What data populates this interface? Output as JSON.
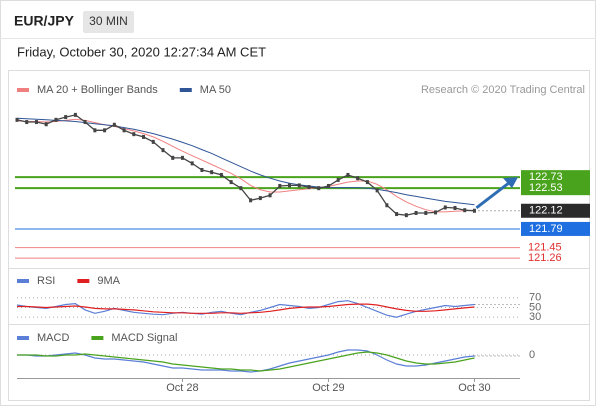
{
  "header": {
    "symbol": "EUR/JPY",
    "timeframe": "30 MIN",
    "date": "Friday, October 30, 2020 12:27:34 AM CET",
    "attribution": "Research © 2020 Trading Central"
  },
  "chart_data": [
    {
      "type": "line",
      "color": "#444444",
      "categories": [
        null,
        null,
        null,
        null,
        null,
        null,
        null,
        null,
        null,
        null,
        null,
        null,
        null,
        null,
        null,
        null,
        null,
        "Oct 28",
        null,
        null,
        null,
        null,
        null,
        null,
        null,
        null,
        null,
        null,
        null,
        null,
        null,
        null,
        "Oct 29",
        null,
        null,
        null,
        null,
        null,
        null,
        null,
        null,
        null,
        null,
        null,
        null,
        null,
        null,
        "Oct 30"
      ],
      "values": [
        123.77,
        123.73,
        123.73,
        123.69,
        123.77,
        123.82,
        123.86,
        123.73,
        123.58,
        123.58,
        123.68,
        123.58,
        123.51,
        123.46,
        123.37,
        123.22,
        123.08,
        123.08,
        122.98,
        122.86,
        122.82,
        122.77,
        122.64,
        122.53,
        122.31,
        122.35,
        122.4,
        122.57,
        122.58,
        122.58,
        122.55,
        122.53,
        122.57,
        122.68,
        122.77,
        122.71,
        122.64,
        122.49,
        122.22,
        122.06,
        122.04,
        122.08,
        122.08,
        122.09,
        122.18,
        122.17,
        122.13,
        122.12
      ],
      "series": [
        {
          "name": "MA 20 + Bollinger Bands",
          "color": "#f08080",
          "values": [
            123.75,
            123.74,
            123.74,
            123.73,
            123.74,
            123.76,
            123.78,
            123.76,
            123.72,
            123.68,
            123.65,
            123.61,
            123.57,
            123.52,
            123.46,
            123.38,
            123.29,
            123.2,
            123.12,
            123.04,
            122.96,
            122.88,
            122.8,
            122.7,
            122.58,
            122.5,
            122.46,
            122.46,
            122.48,
            122.5,
            122.52,
            122.54,
            122.56,
            122.6,
            122.64,
            122.66,
            122.66,
            122.6,
            122.5,
            122.38,
            122.28,
            122.2,
            122.14,
            122.1,
            122.1,
            122.11,
            122.12,
            122.13
          ]
        },
        {
          "name": "MA 50",
          "color": "#2f5597",
          "values": [
            123.8,
            123.79,
            123.78,
            123.77,
            123.76,
            123.75,
            123.74,
            123.72,
            123.7,
            123.68,
            123.66,
            123.63,
            123.6,
            123.56,
            123.52,
            123.47,
            123.42,
            123.36,
            123.3,
            123.23,
            123.16,
            123.08,
            123.0,
            122.92,
            122.84,
            122.77,
            122.71,
            122.66,
            122.62,
            122.59,
            122.57,
            122.55,
            122.54,
            122.54,
            122.54,
            122.54,
            122.53,
            122.51,
            122.48,
            122.45,
            122.41,
            122.38,
            122.35,
            122.32,
            122.29,
            122.27,
            122.25,
            122.23
          ]
        }
      ],
      "levels": [
        {
          "value": 122.73,
          "color": "#4aa31d"
        },
        {
          "value": 122.53,
          "color": "#4aa31d"
        },
        {
          "value": 121.79,
          "color": "#1f6fe0"
        },
        {
          "value": 121.45,
          "color": "#e03030"
        },
        {
          "value": 121.26,
          "color": "#e03030"
        }
      ],
      "ylim": [
        121.19,
        124.13
      ]
    },
    {
      "type": "line",
      "series": [
        {
          "name": "RSI",
          "color": "#5b7fd6",
          "values": [
            55,
            52,
            50,
            48,
            52,
            56,
            58,
            45,
            38,
            42,
            48,
            44,
            40,
            38,
            36,
            35,
            38,
            40,
            38,
            36,
            40,
            42,
            38,
            35,
            40,
            44,
            50,
            56,
            54,
            52,
            48,
            50,
            56,
            62,
            64,
            58,
            50,
            42,
            34,
            30,
            36,
            42,
            46,
            50,
            54,
            52,
            54,
            56
          ]
        },
        {
          "name": "9MA",
          "color": "#e02020",
          "values": [
            52,
            52,
            51,
            50,
            51,
            52,
            53,
            51,
            48,
            47,
            47,
            46,
            45,
            43,
            41,
            40,
            39,
            39,
            38,
            38,
            38,
            39,
            39,
            38,
            39,
            40,
            42,
            45,
            48,
            50,
            51,
            51,
            52,
            54,
            56,
            57,
            57,
            55,
            51,
            47,
            44,
            42,
            42,
            43,
            45,
            47,
            49,
            51
          ]
        }
      ],
      "ylim": [
        20,
        86
      ],
      "yticks": [
        70,
        50,
        30
      ]
    },
    {
      "type": "line",
      "series": [
        {
          "name": "MACD",
          "color": "#5b7fd6",
          "values": [
            0.0,
            0.0,
            -0.01,
            -0.01,
            0.0,
            0.01,
            0.02,
            0.0,
            -0.03,
            -0.04,
            -0.04,
            -0.05,
            -0.06,
            -0.07,
            -0.09,
            -0.11,
            -0.13,
            -0.13,
            -0.14,
            -0.15,
            -0.15,
            -0.15,
            -0.16,
            -0.16,
            -0.17,
            -0.16,
            -0.14,
            -0.11,
            -0.08,
            -0.06,
            -0.04,
            -0.02,
            0.0,
            0.03,
            0.05,
            0.05,
            0.04,
            0.0,
            -0.05,
            -0.09,
            -0.11,
            -0.11,
            -0.1,
            -0.08,
            -0.06,
            -0.04,
            -0.02,
            -0.01
          ]
        },
        {
          "name": "MACD Signal",
          "color": "#4aa31d",
          "values": [
            0.0,
            0.0,
            0.0,
            -0.01,
            -0.01,
            0.0,
            0.0,
            0.01,
            0.0,
            -0.01,
            -0.02,
            -0.03,
            -0.04,
            -0.05,
            -0.06,
            -0.07,
            -0.09,
            -0.1,
            -0.11,
            -0.12,
            -0.13,
            -0.14,
            -0.14,
            -0.15,
            -0.15,
            -0.16,
            -0.15,
            -0.14,
            -0.12,
            -0.1,
            -0.08,
            -0.06,
            -0.04,
            -0.02,
            0.0,
            0.02,
            0.03,
            0.02,
            0.0,
            -0.03,
            -0.06,
            -0.08,
            -0.09,
            -0.09,
            -0.08,
            -0.07,
            -0.05,
            -0.03
          ]
        }
      ],
      "ylim": [
        -0.18,
        0.1
      ],
      "yticks": [
        0
      ]
    }
  ]
}
